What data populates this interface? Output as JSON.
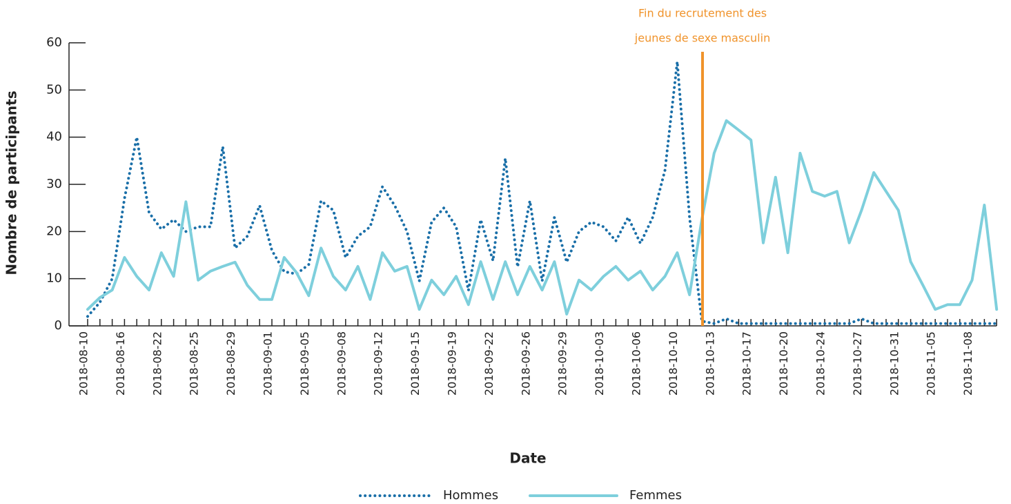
{
  "chart_data": {
    "type": "line",
    "ylabel": "Nombre de participants",
    "xlabel": "Date",
    "annotation": {
      "lines": [
        "Fin du recrutement des",
        "jeunes de sexe masculin"
      ],
      "color": "#f0932b"
    },
    "categories": [
      "2018-08-10",
      null,
      null,
      "2018-08-16",
      null,
      null,
      "2018-08-22",
      null,
      null,
      "2018-08-25",
      null,
      null,
      "2018-08-29",
      null,
      null,
      "2018-09-01",
      null,
      null,
      "2018-09-05",
      null,
      null,
      "2018-09-08",
      null,
      null,
      "2018-09-12",
      null,
      null,
      "2018-09-15",
      null,
      null,
      "2018-09-19",
      null,
      null,
      "2018-09-22",
      null,
      null,
      "2018-09-26",
      null,
      null,
      "2018-09-29",
      null,
      null,
      "2018-10-03",
      null,
      null,
      "2018-10-06",
      null,
      null,
      "2018-10-10",
      null,
      null,
      "2018-10-13",
      null,
      null,
      "2018-10-17",
      null,
      null,
      "2018-10-20",
      null,
      null,
      "2018-10-24",
      null,
      null,
      "2018-10-27",
      null,
      null,
      "2018-10-31",
      null,
      null,
      "2018-11-05",
      null,
      null,
      "2018-11-08",
      null,
      null
    ],
    "series": [
      {
        "name": "Hommes",
        "color": "#1a6fa8",
        "dash": "dotted",
        "values": [
          2,
          5,
          10,
          27,
          40,
          24,
          20.5,
          22.5,
          20,
          21,
          21,
          38,
          16.5,
          19,
          25.5,
          16,
          11.5,
          11,
          13,
          26.5,
          24.5,
          14.5,
          19,
          21,
          29.5,
          25.5,
          20,
          9.5,
          22,
          25,
          21,
          7.5,
          22.5,
          13.8,
          35.5,
          12.5,
          26.5,
          9.5,
          23,
          13.5,
          20,
          22,
          21,
          18,
          23,
          17.5,
          23,
          33,
          56,
          23,
          1,
          0.5,
          1.5,
          0.5,
          0.5,
          0.5,
          0.5,
          0.5,
          0.5,
          0.5,
          0.5,
          0.5,
          0.5,
          1.5,
          0.5,
          0.5,
          0.5,
          0.5,
          0.5,
          0.5,
          0.5,
          0.5,
          0.5,
          0.5,
          0.5
        ]
      },
      {
        "name": "Femmes",
        "color": "#7ecfdc",
        "dash": "solid",
        "values": [
          3.5,
          6,
          7.6,
          14.5,
          10.5,
          7.6,
          15.5,
          10.5,
          26.3,
          9.7,
          11.6,
          12.6,
          13.5,
          8.6,
          5.6,
          5.6,
          14.5,
          11.3,
          6.4,
          16.5,
          10.5,
          7.6,
          12.6,
          5.6,
          15.5,
          11.6,
          12.6,
          3.5,
          9.7,
          6.6,
          10.5,
          4.5,
          13.6,
          5.6,
          13.6,
          6.6,
          12.6,
          7.6,
          13.6,
          2.5,
          9.7,
          7.6,
          10.5,
          12.6,
          9.7,
          11.6,
          7.6,
          10.5,
          15.5,
          6.6,
          22.5,
          36.6,
          43.5,
          41.5,
          39.4,
          17.6,
          31.5,
          15.5,
          36.6,
          28.5,
          27.5,
          28.5,
          17.6,
          24.5,
          32.5,
          28.5,
          24.5,
          13.6,
          8.6,
          3.5,
          4.5,
          4.5,
          9.7,
          25.6,
          3.5
        ]
      }
    ],
    "ylim": [
      0,
      60
    ],
    "yticks": [
      0,
      10,
      20,
      30,
      40,
      50,
      60
    ]
  }
}
